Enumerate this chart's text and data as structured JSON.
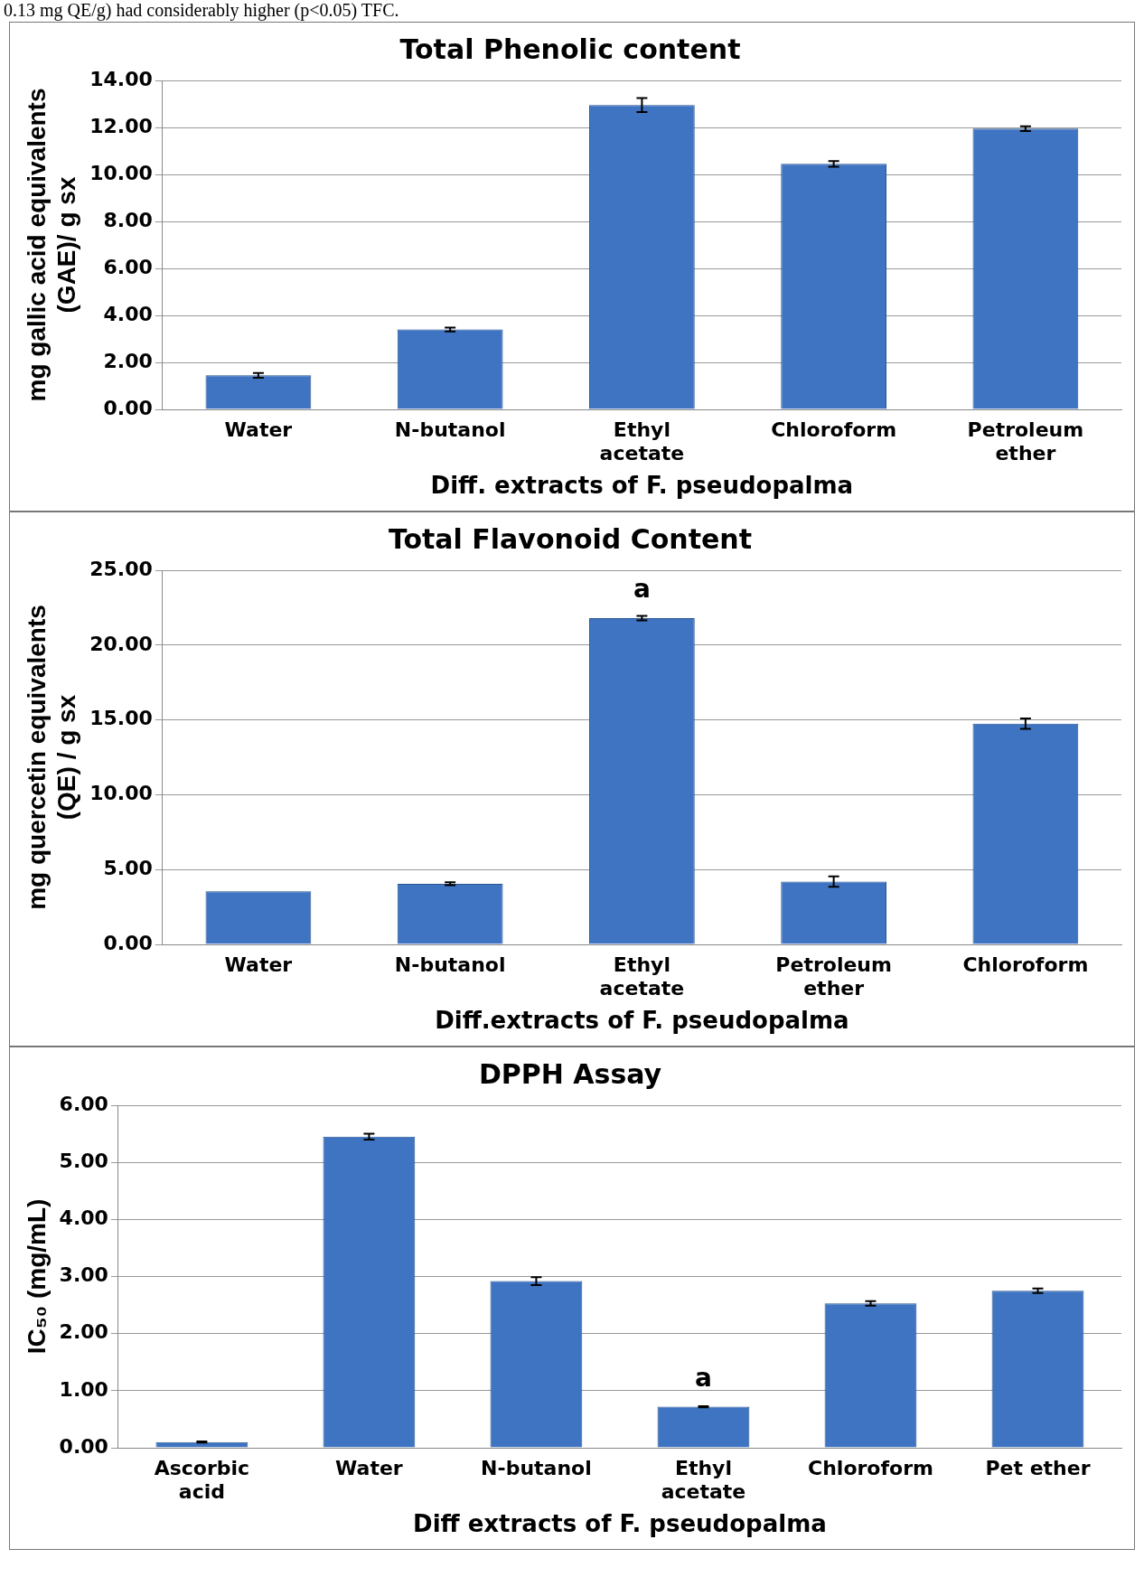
{
  "chart_data": [
    {
      "type": "bar",
      "title": "Total Phenolic content",
      "xlabel": "Diff. extracts of F. pseudopalma",
      "ylabel": "mg gallic acid equivalents\n(GAE)/ g sx",
      "categories": [
        "Water",
        "N-butanol",
        "Ethyl\nacetate",
        "Chloroform",
        "Petroleum\nether"
      ],
      "values": [
        1.45,
        3.4,
        12.95,
        10.45,
        11.95
      ],
      "errors": [
        0.1,
        0.08,
        0.3,
        0.12,
        0.1
      ],
      "color": "#3f74c2",
      "ylim": [
        0,
        14
      ],
      "yticks": [
        {
          "value": 0,
          "label": "0.00"
        },
        {
          "value": 2,
          "label": "2.00"
        },
        {
          "value": 4,
          "label": "4.00"
        },
        {
          "value": 6,
          "label": "6.00"
        },
        {
          "value": 8,
          "label": "8.00"
        },
        {
          "value": 10,
          "label": "10.00"
        },
        {
          "value": 12,
          "label": "12.00"
        },
        {
          "value": 14,
          "label": "14.00"
        }
      ],
      "grid": "y",
      "legend": false,
      "annotations": [
        "0.13 mg QE/g) had considerably higher (p<0.05) TFC."
      ]
    },
    {
      "type": "bar",
      "title": "Total Flavonoid Content",
      "xlabel": "Diff.extracts of F. pseudopalma",
      "ylabel": "mg quercetin equivalents\n(QE) / g sx",
      "categories": [
        "Water",
        "N-butanol",
        "Ethyl\nacetate",
        "Petroleum\nether",
        "Chloroform"
      ],
      "values": [
        3.55,
        4.05,
        21.8,
        4.2,
        14.75
      ],
      "errors": [
        null,
        0.1,
        0.15,
        0.35,
        0.35
      ],
      "color": "#3f74c2",
      "ylim": [
        0,
        25
      ],
      "yticks": [
        {
          "value": 0,
          "label": "0.00"
        },
        {
          "value": 5,
          "label": "5.00"
        },
        {
          "value": 10,
          "label": "10.00"
        },
        {
          "value": 15,
          "label": "15.00"
        },
        {
          "value": 20,
          "label": "20.00"
        },
        {
          "value": 25,
          "label": "25.00"
        }
      ],
      "grid": "y",
      "legend": false,
      "annotations": [
        {
          "text": "a",
          "x": "Ethyl\nacetate",
          "y": 21.8
        }
      ]
    },
    {
      "type": "bar",
      "title": "DPPH Assay",
      "xlabel": "Diff extracts of F. pseudopalma",
      "ylabel": "IC₅₀ (mg/mL)",
      "categories": [
        "Ascorbic\nacid",
        "Water",
        "N-butanol",
        "Ethyl\nacetate",
        "Chloroform",
        "Pet ether"
      ],
      "values": [
        0.1,
        5.45,
        2.92,
        0.72,
        2.53,
        2.75
      ],
      "errors": [
        0.01,
        0.05,
        0.07,
        0.01,
        0.04,
        0.04
      ],
      "color": "#3f74c2",
      "ylim": [
        0,
        6
      ],
      "yticks": [
        {
          "value": 0,
          "label": "0.00"
        },
        {
          "value": 1,
          "label": "1.00"
        },
        {
          "value": 2,
          "label": "2.00"
        },
        {
          "value": 3,
          "label": "3.00"
        },
        {
          "value": 4,
          "label": "4.00"
        },
        {
          "value": 5,
          "label": "5.00"
        },
        {
          "value": 6,
          "label": "6.00"
        }
      ],
      "grid": "y",
      "legend": false,
      "annotations": [
        {
          "text": "a",
          "x": "Ethyl\nacetate",
          "y": 0.72
        }
      ]
    }
  ]
}
